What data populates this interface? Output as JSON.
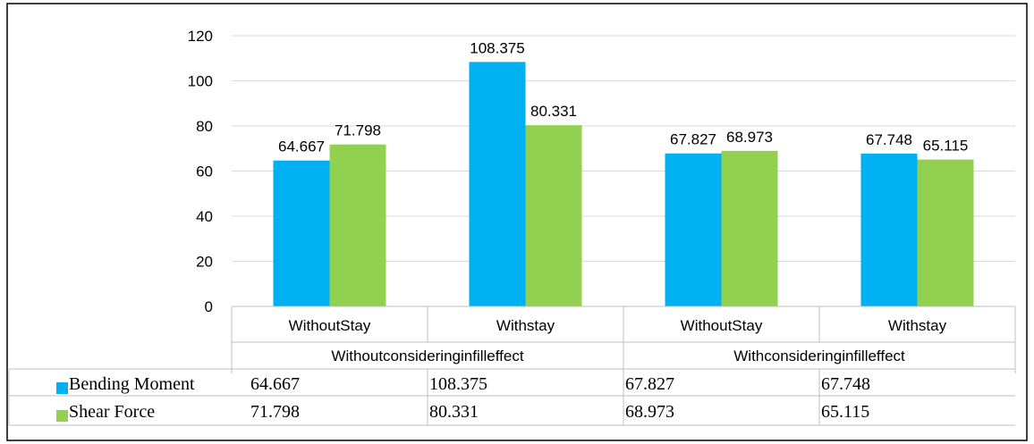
{
  "chart_data": {
    "type": "bar",
    "title": "",
    "xlabel": "",
    "ylabel": "",
    "ylim": [
      0,
      120
    ],
    "yticks": [
      0,
      20,
      40,
      60,
      80,
      100,
      120
    ],
    "grid": true,
    "legend": "data-table",
    "categories": [
      "WithoutStay",
      "Withstay",
      "WithoutStay",
      "Withstay"
    ],
    "groups": [
      {
        "label": "Withoutconsideringinfilleffect",
        "span": 2
      },
      {
        "label": "Withconsideringinfilleffect",
        "span": 2
      }
    ],
    "series": [
      {
        "name": "Bending Moment",
        "color": "#00B0F0",
        "values": [
          64.667,
          108.375,
          67.827,
          67.748
        ],
        "labels": [
          "64.667",
          "108.375",
          "67.827",
          "67.748"
        ]
      },
      {
        "name": "Shear Force",
        "color": "#92D050",
        "values": [
          71.798,
          80.331,
          68.973,
          65.115
        ],
        "labels": [
          "71.798",
          "80.331",
          "68.973",
          "65.115"
        ]
      }
    ]
  }
}
